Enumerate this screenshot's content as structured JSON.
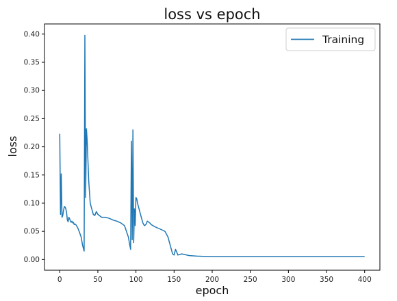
{
  "chart_data": {
    "type": "line",
    "title": "loss vs epoch",
    "xlabel": "epoch",
    "ylabel": "loss",
    "xlim": [
      -20,
      420
    ],
    "ylim": [
      -0.019,
      0.418
    ],
    "xticks": [
      0,
      50,
      100,
      150,
      200,
      250,
      300,
      350,
      400
    ],
    "yticks": [
      0.0,
      0.05,
      0.1,
      0.15,
      0.2,
      0.25,
      0.3,
      0.35,
      0.4
    ],
    "ytick_labels": [
      "0.00",
      "0.05",
      "0.10",
      "0.15",
      "0.20",
      "0.25",
      "0.30",
      "0.35",
      "0.40"
    ],
    "grid": false,
    "legend_position": "top-right",
    "colors": {
      "series": "#1f77b4",
      "axes": "#000000"
    },
    "series": [
      {
        "name": "Training",
        "x": [
          0,
          1,
          2,
          3,
          4,
          5,
          6,
          7,
          8,
          9,
          10,
          11,
          12,
          13,
          14,
          15,
          16,
          17,
          18,
          19,
          20,
          21,
          22,
          24,
          26,
          28,
          30,
          32,
          33,
          34,
          35,
          36,
          37,
          38,
          39,
          40,
          42,
          44,
          46,
          48,
          50,
          55,
          60,
          65,
          70,
          75,
          80,
          85,
          90,
          92,
          93,
          94,
          95,
          96,
          97,
          98,
          99,
          100,
          101,
          102,
          103,
          105,
          107,
          109,
          111,
          113,
          115,
          118,
          120,
          125,
          130,
          135,
          138,
          140,
          142,
          144,
          146,
          148,
          150,
          152,
          155,
          160,
          170,
          180,
          200,
          250,
          300,
          350,
          400
        ],
        "y": [
          0.223,
          0.08,
          0.152,
          0.075,
          0.078,
          0.087,
          0.094,
          0.093,
          0.09,
          0.083,
          0.07,
          0.067,
          0.075,
          0.072,
          0.068,
          0.066,
          0.068,
          0.065,
          0.066,
          0.062,
          0.063,
          0.062,
          0.06,
          0.055,
          0.048,
          0.04,
          0.025,
          0.015,
          0.398,
          0.11,
          0.232,
          0.21,
          0.175,
          0.14,
          0.12,
          0.1,
          0.09,
          0.08,
          0.078,
          0.085,
          0.08,
          0.075,
          0.075,
          0.073,
          0.07,
          0.068,
          0.065,
          0.06,
          0.04,
          0.025,
          0.018,
          0.21,
          0.035,
          0.23,
          0.03,
          0.09,
          0.06,
          0.11,
          0.108,
          0.1,
          0.095,
          0.085,
          0.075,
          0.065,
          0.06,
          0.062,
          0.068,
          0.065,
          0.062,
          0.058,
          0.055,
          0.052,
          0.05,
          0.045,
          0.04,
          0.03,
          0.02,
          0.01,
          0.008,
          0.018,
          0.008,
          0.01,
          0.007,
          0.006,
          0.005,
          0.005,
          0.005,
          0.005,
          0.005
        ]
      }
    ]
  }
}
